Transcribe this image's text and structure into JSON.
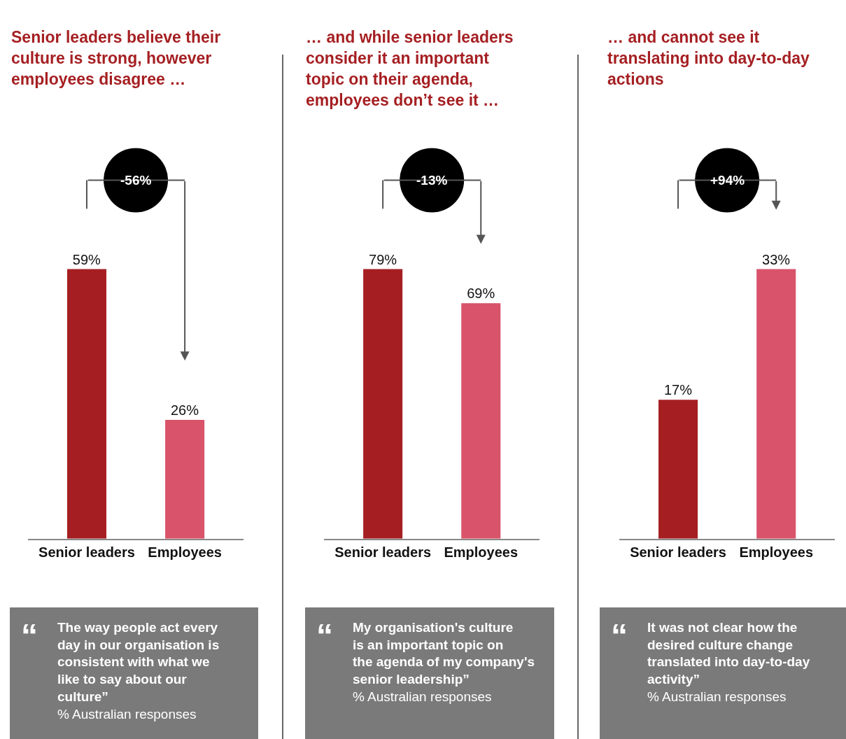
{
  "chart_data": [
    {
      "type": "bar",
      "title": "Senior leaders believe their culture is strong, however employees disagree …",
      "categories": [
        "Senior leaders",
        "Employees"
      ],
      "values": [
        59,
        26
      ],
      "colors": [
        "#a51f22",
        "#d9536b"
      ],
      "data_labels": true,
      "tick_labels": "x",
      "value_labels": [
        "59%",
        "26%"
      ],
      "annotations": [
        "-56%",
        "“",
        "The way people act every day in our organisation is consistent with what we like to say about our culture”",
        "% Australian responses"
      ]
    },
    {
      "type": "bar",
      "title": "… and while senior leaders consider it an important topic on their agenda, employees don’t see it …",
      "categories": [
        "Senior leaders",
        "Employees"
      ],
      "values": [
        79,
        69
      ],
      "colors": [
        "#a51f22",
        "#d9536b"
      ],
      "data_labels": true,
      "tick_labels": "x",
      "value_labels": [
        "79%",
        "69%"
      ],
      "annotations": [
        "-13%",
        "“",
        "My organisation's culture is an important topic on the agenda of my company's senior leadership”",
        "% Australian responses"
      ]
    },
    {
      "type": "bar",
      "title": "… and cannot see it translating into day-to-day actions",
      "categories": [
        "Senior leaders",
        "Employees"
      ],
      "values": [
        17,
        33
      ],
      "colors": [
        "#a51f22",
        "#d9536b"
      ],
      "data_labels": true,
      "tick_labels": "x",
      "value_labels": [
        "17%",
        "33%"
      ],
      "annotations": [
        "+94%",
        "“",
        "It was not clear how the desired culture change translated into day-to-day activity”",
        "% Australian responses"
      ]
    }
  ]
}
